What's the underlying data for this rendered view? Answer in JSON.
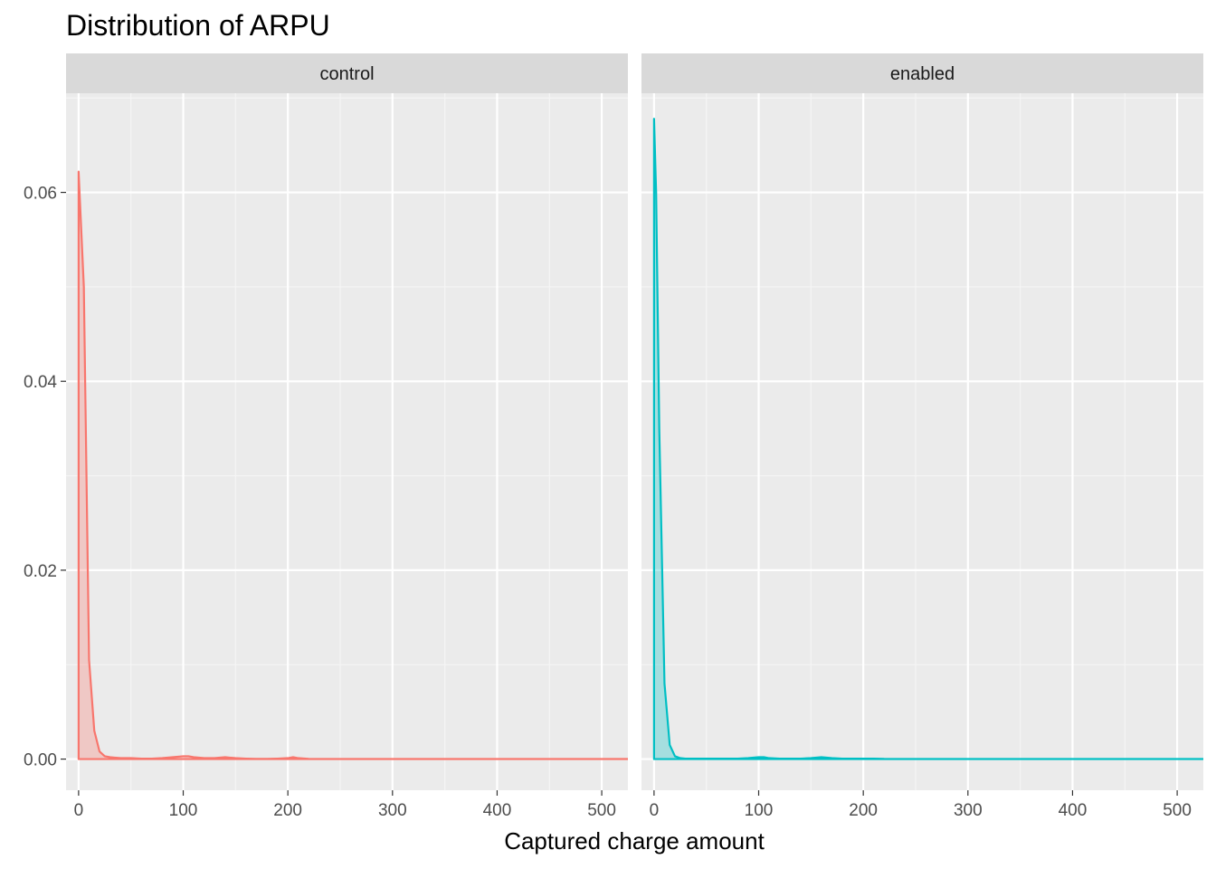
{
  "chart_data": {
    "type": "area",
    "title": "Distribution of ARPU",
    "xlabel": "Captured charge amount",
    "ylabel": "",
    "xlim": [
      -12,
      525
    ],
    "ylim": [
      -0.0033,
      0.0705
    ],
    "x_ticks": [
      0,
      100,
      200,
      300,
      400,
      500
    ],
    "x_tick_labels": [
      "0",
      "100",
      "200",
      "300",
      "400",
      "500"
    ],
    "y_ticks": [
      0,
      0.02,
      0.04,
      0.06
    ],
    "y_tick_labels": [
      "0.00",
      "0.02",
      "0.04",
      "0.06"
    ],
    "grid": true,
    "legend": "none",
    "facets": [
      {
        "label": "control",
        "color": "#F8766D",
        "fill": "#F8766D",
        "x": [
          0,
          5,
          10,
          15,
          20,
          25,
          30,
          40,
          50,
          60,
          70,
          80,
          90,
          100,
          105,
          110,
          120,
          130,
          140,
          150,
          160,
          170,
          180,
          190,
          200,
          205,
          210,
          220,
          250,
          300,
          350,
          400,
          450,
          500,
          525
        ],
        "y": [
          0.0622,
          0.05,
          0.0105,
          0.003,
          0.0008,
          0.0003,
          0.0002,
          0.0001,
          0.0001,
          5e-05,
          5e-05,
          0.0001,
          0.0002,
          0.0003,
          0.0003,
          0.0002,
          0.0001,
          0.0001,
          0.0002,
          0.0001,
          5e-05,
          2e-05,
          2e-05,
          5e-05,
          0.0001,
          0.0002,
          0.0001,
          2e-05,
          1e-05,
          1e-05,
          1e-05,
          1e-05,
          1e-05,
          1e-05,
          1e-05
        ]
      },
      {
        "label": "enabled",
        "color": "#00BFC4",
        "fill": "#00BFC4",
        "x": [
          0,
          2,
          5,
          10,
          15,
          20,
          25,
          30,
          40,
          50,
          60,
          70,
          80,
          90,
          100,
          105,
          110,
          120,
          130,
          140,
          150,
          160,
          170,
          180,
          190,
          200,
          210,
          220,
          250,
          300,
          350,
          400,
          450,
          500,
          525
        ],
        "y": [
          0.0678,
          0.06,
          0.035,
          0.008,
          0.0015,
          0.0003,
          0.0001,
          5e-05,
          5e-05,
          5e-05,
          5e-05,
          5e-05,
          5e-05,
          0.0001,
          0.0002,
          0.0002,
          0.0001,
          5e-05,
          5e-05,
          5e-05,
          0.0001,
          0.0002,
          0.0001,
          5e-05,
          5e-05,
          5e-05,
          5e-05,
          2e-05,
          1e-05,
          1e-05,
          1e-05,
          1e-05,
          1e-05,
          1e-05,
          1e-05
        ]
      }
    ]
  }
}
